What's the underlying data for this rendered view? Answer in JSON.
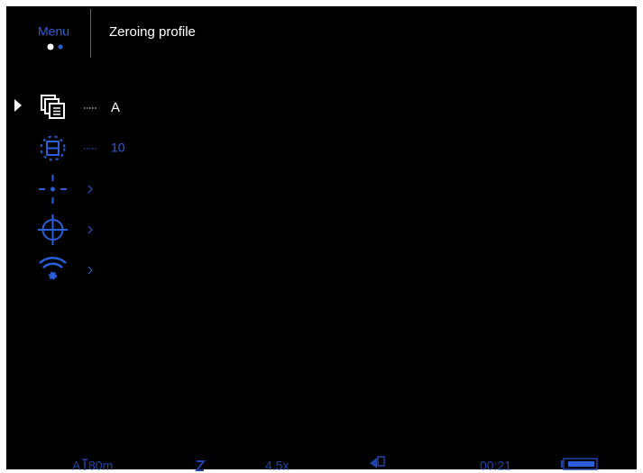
{
  "header": {
    "menu": "Menu",
    "title": "Zeroing profile"
  },
  "menu_items": [
    {
      "value": "A"
    },
    {
      "value": "10"
    }
  ],
  "status_bar": {
    "range_mode": "A",
    "distance": "80m",
    "zoom": "4.5x",
    "time": "00:21"
  }
}
